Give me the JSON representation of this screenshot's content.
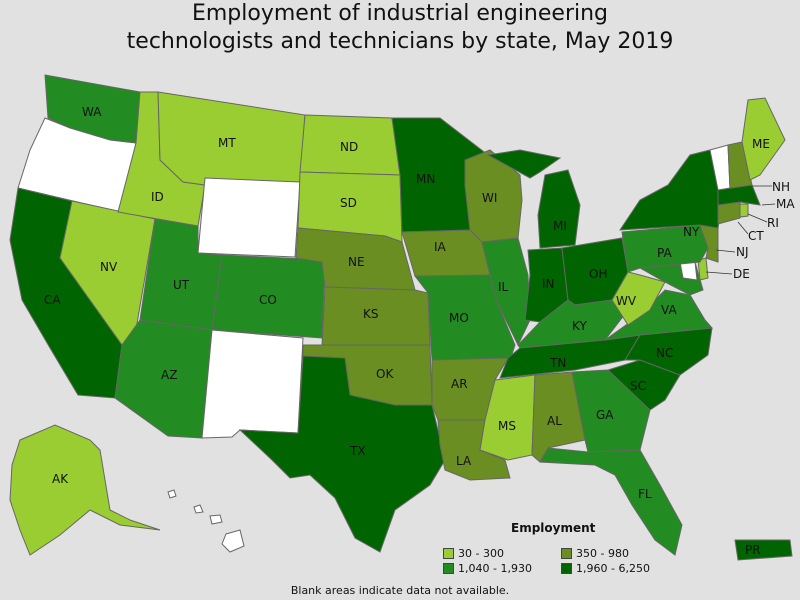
{
  "title_line1": "Employment of industrial engineering",
  "title_line2": "technologists and technicians by state, May 2019",
  "colors": {
    "c1": "#9acd32",
    "c2": "#6b8e23",
    "c3": "#228b22",
    "c4": "#006400",
    "blank": "#ffffff"
  },
  "legend": {
    "title": "Employment",
    "items": [
      {
        "label": "30 - 300",
        "color": "#9acd32"
      },
      {
        "label": "350 - 980",
        "color": "#6b8e23"
      },
      {
        "label": "1,040 - 1,930",
        "color": "#228b22"
      },
      {
        "label": "1,960 - 6,250",
        "color": "#006400"
      }
    ]
  },
  "note": "Blank areas indicate data not available.",
  "states": {
    "WA": {
      "label": "WA",
      "class": "c3"
    },
    "OR": {
      "label": "",
      "class": "blank"
    },
    "CA": {
      "label": "CA",
      "class": "c4"
    },
    "NV": {
      "label": "NV",
      "class": "c1"
    },
    "ID": {
      "label": "ID",
      "class": "c1"
    },
    "MT": {
      "label": "MT",
      "class": "c1"
    },
    "WY": {
      "label": "",
      "class": "blank"
    },
    "UT": {
      "label": "UT",
      "class": "c3"
    },
    "CO": {
      "label": "CO",
      "class": "c3"
    },
    "AZ": {
      "label": "AZ",
      "class": "c3"
    },
    "NM": {
      "label": "",
      "class": "blank"
    },
    "ND": {
      "label": "ND",
      "class": "c1"
    },
    "SD": {
      "label": "SD",
      "class": "c1"
    },
    "NE": {
      "label": "NE",
      "class": "c2"
    },
    "KS": {
      "label": "KS",
      "class": "c2"
    },
    "OK": {
      "label": "OK",
      "class": "c2"
    },
    "TX": {
      "label": "TX",
      "class": "c4"
    },
    "MN": {
      "label": "MN",
      "class": "c4"
    },
    "IA": {
      "label": "IA",
      "class": "c2"
    },
    "MO": {
      "label": "MO",
      "class": "c3"
    },
    "AR": {
      "label": "AR",
      "class": "c2"
    },
    "LA": {
      "label": "LA",
      "class": "c2"
    },
    "WI": {
      "label": "WI",
      "class": "c2"
    },
    "IL": {
      "label": "IL",
      "class": "c3"
    },
    "MI": {
      "label": "MI",
      "class": "c4"
    },
    "IN": {
      "label": "IN",
      "class": "c4"
    },
    "OH": {
      "label": "OH",
      "class": "c4"
    },
    "KY": {
      "label": "KY",
      "class": "c3"
    },
    "TN": {
      "label": "TN",
      "class": "c4"
    },
    "MS": {
      "label": "MS",
      "class": "c1"
    },
    "AL": {
      "label": "AL",
      "class": "c2"
    },
    "GA": {
      "label": "GA",
      "class": "c3"
    },
    "FL": {
      "label": "FL",
      "class": "c3"
    },
    "SC": {
      "label": "SC",
      "class": "c4"
    },
    "NC": {
      "label": "NC",
      "class": "c4"
    },
    "VA": {
      "label": "VA",
      "class": "c3"
    },
    "WV": {
      "label": "WV",
      "class": "c1"
    },
    "PA": {
      "label": "PA",
      "class": "c3"
    },
    "NY": {
      "label": "NY",
      "class": "c4"
    },
    "VT": {
      "label": "",
      "class": "blank"
    },
    "NH": {
      "label": "NH",
      "class": "c2"
    },
    "ME": {
      "label": "ME",
      "class": "c1"
    },
    "MA": {
      "label": "MA",
      "class": "c4"
    },
    "RI": {
      "label": "RI",
      "class": "c1"
    },
    "CT": {
      "label": "CT",
      "class": "c2"
    },
    "NJ": {
      "label": "NJ",
      "class": "c2"
    },
    "DE": {
      "label": "DE",
      "class": "c1"
    },
    "MD": {
      "label": "",
      "class": "c3"
    },
    "DC": {
      "label": "",
      "class": "blank"
    },
    "AK": {
      "label": "AK",
      "class": "c1"
    },
    "HI": {
      "label": "",
      "class": "blank"
    },
    "PR": {
      "label": "PR",
      "class": "c4"
    }
  }
}
